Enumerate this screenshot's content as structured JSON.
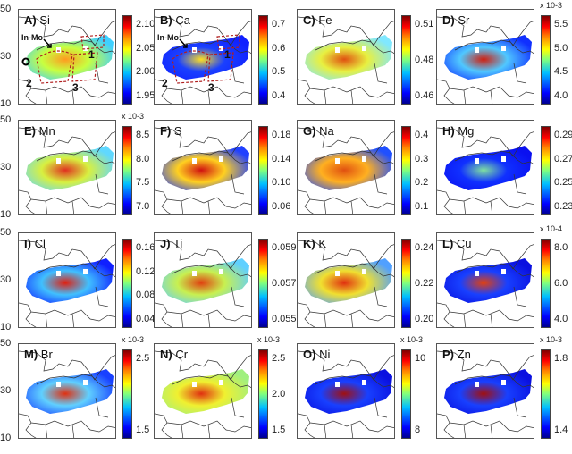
{
  "latitude_ticks": [
    "50",
    "30",
    "10"
  ],
  "panels": [
    {
      "letter": "A)",
      "element": "Si",
      "exponent": "",
      "ticks": [
        "2.10",
        "2.05",
        "2.00",
        "1.95"
      ],
      "colors": [
        "#3fd0ff",
        "#c8ff40",
        "#ff9a20"
      ],
      "annotations": {
        "arrow": "In-Mo",
        "regions": [
          "1",
          "2",
          "3"
        ],
        "marker": "circle"
      }
    },
    {
      "letter": "B)",
      "element": "Ca",
      "exponent": "",
      "ticks": [
        "0.7",
        "0.6",
        "0.5",
        "0.4"
      ],
      "colors": [
        "#1020ff",
        "#1a40ff",
        "#ffe020"
      ],
      "annotations": {
        "arrow": "In-Mo",
        "regions": [
          "1",
          "2",
          "3"
        ]
      }
    },
    {
      "letter": "C)",
      "element": "Fe",
      "exponent": "",
      "ticks": [
        "0.51",
        "0.48",
        "0.46"
      ],
      "colors": [
        "#80e8ff",
        "#e8f040",
        "#e05010"
      ]
    },
    {
      "letter": "D)",
      "element": "Sr",
      "exponent": "x 10-3",
      "ticks": [
        "5.5",
        "5.0",
        "4.5",
        "4.0"
      ],
      "colors": [
        "#1030ff",
        "#50c8ff",
        "#d02010"
      ]
    },
    {
      "letter": "E)",
      "element": "Mn",
      "exponent": "x 10-3",
      "ticks": [
        "8.5",
        "8.0",
        "7.5",
        "7.0"
      ],
      "colors": [
        "#60d8ff",
        "#d8f040",
        "#e03020"
      ]
    },
    {
      "letter": "F)",
      "element": "S",
      "exponent": "",
      "ticks": [
        "0.18",
        "0.14",
        "0.10",
        "0.06"
      ],
      "colors": [
        "#2040ff",
        "#ffd020",
        "#d01010"
      ]
    },
    {
      "letter": "G)",
      "element": "Na",
      "exponent": "",
      "ticks": [
        "0.4",
        "0.3",
        "0.2",
        "0.1"
      ],
      "colors": [
        "#2050ff",
        "#ffb020",
        "#e05010"
      ]
    },
    {
      "letter": "H)",
      "element": "Mg",
      "exponent": "",
      "ticks": [
        "0.29",
        "0.27",
        "0.25",
        "0.23"
      ],
      "colors": [
        "#0a10f0",
        "#1030ff",
        "#80e0a0"
      ]
    },
    {
      "letter": "I)",
      "element": "Cl",
      "exponent": "",
      "ticks": [
        "0.16",
        "0.12",
        "0.08",
        "0.04"
      ],
      "colors": [
        "#1020ff",
        "#40c0ff",
        "#e02010"
      ]
    },
    {
      "letter": "J)",
      "element": "Ti",
      "exponent": "",
      "ticks": [
        "0.059",
        "0.057",
        "0.055"
      ],
      "colors": [
        "#60d0ff",
        "#c8f050",
        "#e04010"
      ]
    },
    {
      "letter": "K)",
      "element": "K",
      "exponent": "",
      "ticks": [
        "0.24",
        "0.22",
        "0.20"
      ],
      "colors": [
        "#50a0ff",
        "#f0e030",
        "#e03010"
      ]
    },
    {
      "letter": "L)",
      "element": "Cu",
      "exponent": "x 10-4",
      "ticks": [
        "8.0",
        "6.0",
        "4.0"
      ],
      "colors": [
        "#0a10e0",
        "#1840ff",
        "#e04010"
      ]
    },
    {
      "letter": "M)",
      "element": "Br",
      "exponent": "x 10-3",
      "ticks": [
        "2.5",
        "1.5"
      ],
      "colors": [
        "#1840ff",
        "#60d0ff",
        "#e03010"
      ]
    },
    {
      "letter": "N)",
      "element": "Cr",
      "exponent": "x 10-3",
      "ticks": [
        "2.5",
        "2.0",
        "1.5"
      ],
      "colors": [
        "#a0f080",
        "#f0f030",
        "#e03010"
      ]
    },
    {
      "letter": "O)",
      "element": "Ni",
      "exponent": "x 10-3",
      "ticks": [
        "10",
        "8"
      ],
      "colors": [
        "#0a10e0",
        "#1840ff",
        "#a01010"
      ]
    },
    {
      "letter": "P)",
      "element": "Zn",
      "exponent": "x 10-3",
      "ticks": [
        "1.8",
        "1.4"
      ],
      "colors": [
        "#0a10e0",
        "#1840ff",
        "#a01010"
      ]
    }
  ]
}
